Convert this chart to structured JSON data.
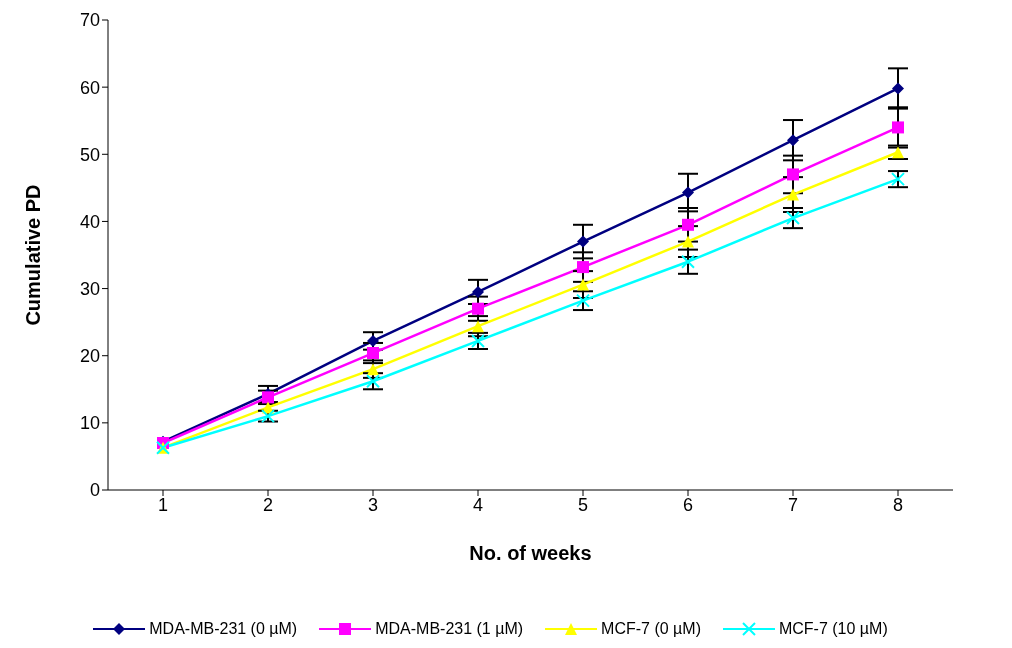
{
  "chart_data": {
    "type": "line",
    "xlabel": "No. of weeks",
    "ylabel": "Cumulative PD",
    "categories": [
      "1",
      "2",
      "3",
      "4",
      "5",
      "6",
      "7",
      "8"
    ],
    "ylim": [
      0,
      70
    ],
    "yticks": [
      0,
      10,
      20,
      30,
      40,
      50,
      60,
      70
    ],
    "grid": false,
    "legend": "bottom",
    "line_style": "solid",
    "series": [
      {
        "name": "MDA-MB-231 (0 µM)",
        "color": "#000080",
        "marker": "diamond",
        "values": [
          7.2,
          14.3,
          22.2,
          29.5,
          37,
          44.3,
          52.1,
          59.8
        ],
        "errors": [
          null,
          1.2,
          1.3,
          1.8,
          2.5,
          2.8,
          3,
          3
        ]
      },
      {
        "name": "MDA-MB-231 (1 µM)",
        "color": "#ff00ff",
        "marker": "square",
        "values": [
          7,
          13.8,
          20.4,
          27,
          33.2,
          39.5,
          47,
          54
        ],
        "errors": [
          null,
          1,
          1.5,
          1.8,
          2.2,
          2.5,
          2.8,
          3
        ]
      },
      {
        "name": "MCF-7 (0 µM)",
        "color": "#ffff00",
        "marker": "triangle",
        "values": [
          6.3,
          12.3,
          18,
          24.4,
          30.6,
          37,
          44,
          50.3
        ],
        "errors": [
          null,
          null,
          1.3,
          1.5,
          2,
          2.3,
          2.6,
          1
        ]
      },
      {
        "name": "MCF-7 (10 µM)",
        "color": "#00ffff",
        "marker": "cross",
        "values": [
          6.3,
          11,
          16.2,
          22.2,
          28.2,
          34,
          40.5,
          46.3
        ],
        "errors": [
          null,
          0.8,
          1.2,
          1.2,
          1.4,
          1.8,
          1.5,
          1.2
        ]
      }
    ]
  }
}
